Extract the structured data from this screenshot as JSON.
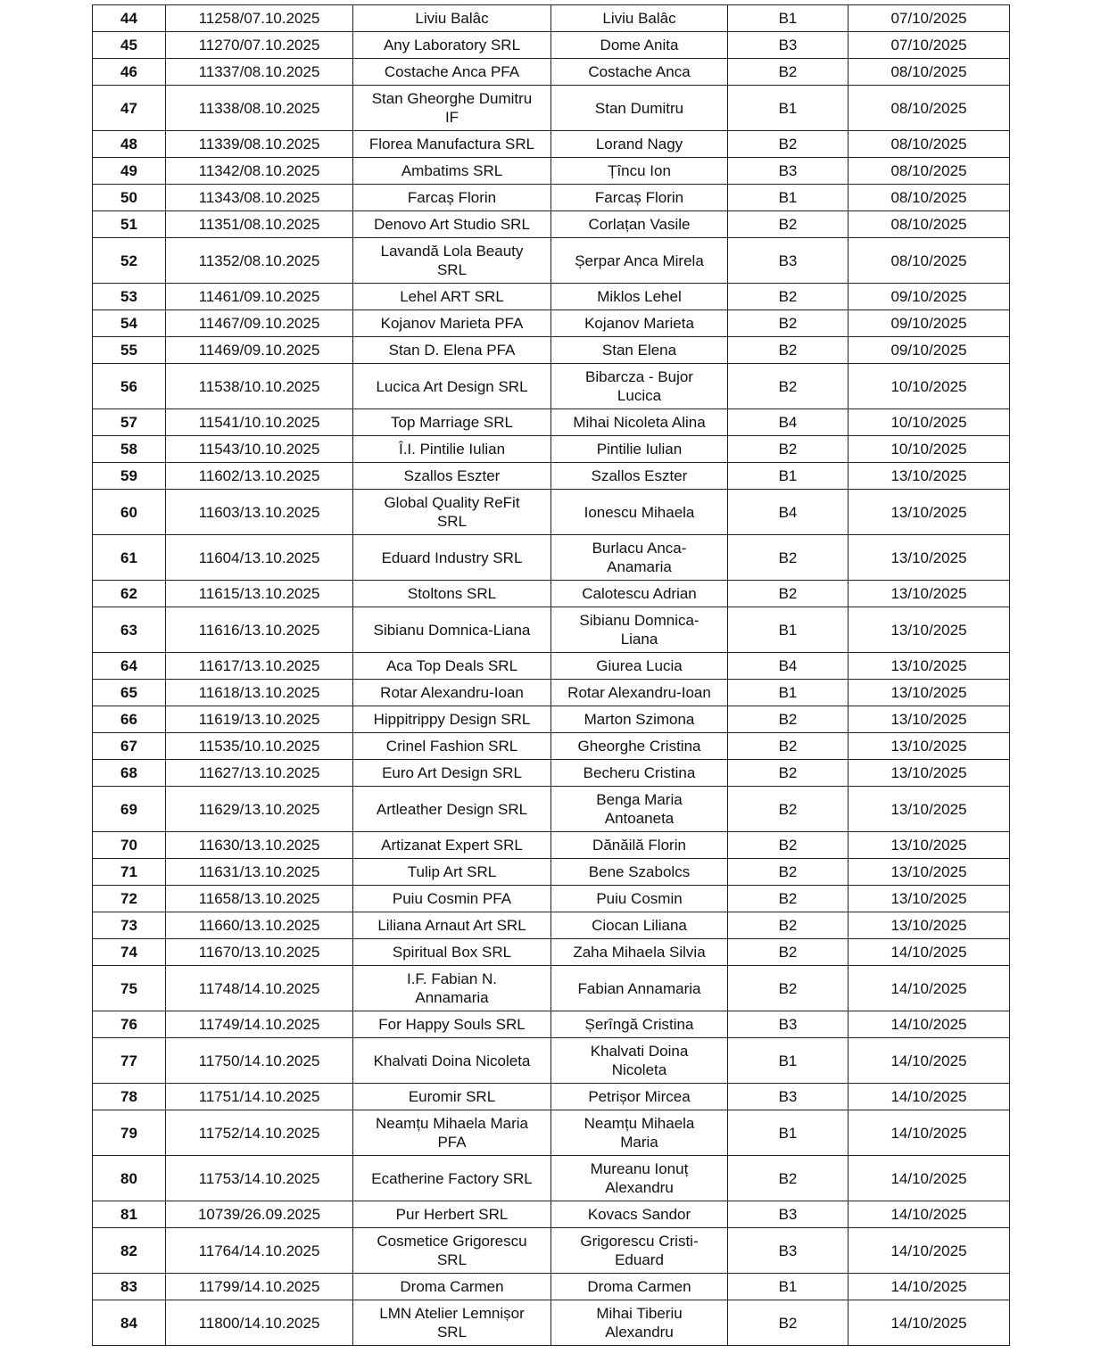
{
  "table": {
    "rows": [
      [
        "44",
        "11258/07.10.2025",
        "Liviu Balâc",
        "Liviu Balâc",
        "B1",
        "07/10/2025"
      ],
      [
        "45",
        "11270/07.10.2025",
        "Any Laboratory SRL",
        "Dome Anita",
        "B3",
        "07/10/2025"
      ],
      [
        "46",
        "11337/08.10.2025",
        "Costache Anca PFA",
        "Costache Anca",
        "B2",
        "08/10/2025"
      ],
      [
        "47",
        "11338/08.10.2025",
        "Stan Gheorghe Dumitru\nIF",
        "Stan Dumitru",
        "B1",
        "08/10/2025"
      ],
      [
        "48",
        "11339/08.10.2025",
        "Florea Manufactura SRL",
        "Lorand Nagy",
        "B2",
        "08/10/2025"
      ],
      [
        "49",
        "11342/08.10.2025",
        "Ambatims SRL",
        "Țîncu Ion",
        "B3",
        "08/10/2025"
      ],
      [
        "50",
        "11343/08.10.2025",
        "Farcaș Florin",
        "Farcaș Florin",
        "B1",
        "08/10/2025"
      ],
      [
        "51",
        "11351/08.10.2025",
        "Denovo Art Studio SRL",
        "Corlațan Vasile",
        "B2",
        "08/10/2025"
      ],
      [
        "52",
        "11352/08.10.2025",
        "Lavandă Lola Beauty\nSRL",
        "Șerpar Anca Mirela",
        "B3",
        "08/10/2025"
      ],
      [
        "53",
        "11461/09.10.2025",
        "Lehel ART SRL",
        "Miklos Lehel",
        "B2",
        "09/10/2025"
      ],
      [
        "54",
        "11467/09.10.2025",
        "Kojanov Marieta PFA",
        "Kojanov Marieta",
        "B2",
        "09/10/2025"
      ],
      [
        "55",
        "11469/09.10.2025",
        "Stan D. Elena PFA",
        "Stan Elena",
        "B2",
        "09/10/2025"
      ],
      [
        "56",
        "11538/10.10.2025",
        "Lucica Art Design SRL",
        "Bibarcza - Bujor\nLucica",
        "B2",
        "10/10/2025"
      ],
      [
        "57",
        "11541/10.10.2025",
        "Top Marriage SRL",
        "Mihai Nicoleta Alina",
        "B4",
        "10/10/2025"
      ],
      [
        "58",
        "11543/10.10.2025",
        "Î.I. Pintilie Iulian",
        "Pintilie Iulian",
        "B2",
        "10/10/2025"
      ],
      [
        "59",
        "11602/13.10.2025",
        "Szallos Eszter",
        "Szallos Eszter",
        "B1",
        "13/10/2025"
      ],
      [
        "60",
        "11603/13.10.2025",
        "Global Quality ReFit\nSRL",
        "Ionescu Mihaela",
        "B4",
        "13/10/2025"
      ],
      [
        "61",
        "11604/13.10.2025",
        "Eduard Industry SRL",
        "Burlacu Anca-\nAnamaria",
        "B2",
        "13/10/2025"
      ],
      [
        "62",
        "11615/13.10.2025",
        "Stoltons SRL",
        "Calotescu Adrian",
        "B2",
        "13/10/2025"
      ],
      [
        "63",
        "11616/13.10.2025",
        "Sibianu Domnica-Liana",
        "Sibianu Domnica-\nLiana",
        "B1",
        "13/10/2025"
      ],
      [
        "64",
        "11617/13.10.2025",
        "Aca Top Deals SRL",
        "Giurea Lucia",
        "B4",
        "13/10/2025"
      ],
      [
        "65",
        "11618/13.10.2025",
        "Rotar Alexandru-Ioan",
        "Rotar Alexandru-Ioan",
        "B1",
        "13/10/2025"
      ],
      [
        "66",
        "11619/13.10.2025",
        "Hippitrippy Design SRL",
        "Marton Szimona",
        "B2",
        "13/10/2025"
      ],
      [
        "67",
        "11535/10.10.2025",
        "Crinel Fashion SRL",
        "Gheorghe Cristina",
        "B2",
        "13/10/2025"
      ],
      [
        "68",
        "11627/13.10.2025",
        "Euro Art Design SRL",
        "Becheru Cristina",
        "B2",
        "13/10/2025"
      ],
      [
        "69",
        "11629/13.10.2025",
        "Artleather Design SRL",
        "Benga Maria\nAntoaneta",
        "B2",
        "13/10/2025"
      ],
      [
        "70",
        "11630/13.10.2025",
        "Artizanat Expert SRL",
        "Dănăilă Florin",
        "B2",
        "13/10/2025"
      ],
      [
        "71",
        "11631/13.10.2025",
        "Tulip Art SRL",
        "Bene Szabolcs",
        "B2",
        "13/10/2025"
      ],
      [
        "72",
        "11658/13.10.2025",
        "Puiu Cosmin PFA",
        "Puiu Cosmin",
        "B2",
        "13/10/2025"
      ],
      [
        "73",
        "11660/13.10.2025",
        "Liliana Arnaut Art SRL",
        "Ciocan Liliana",
        "B2",
        "13/10/2025"
      ],
      [
        "74",
        "11670/13.10.2025",
        "Spiritual Box SRL",
        "Zaha Mihaela Silvia",
        "B2",
        "14/10/2025"
      ],
      [
        "75",
        "11748/14.10.2025",
        "I.F. Fabian N.\nAnnamaria",
        "Fabian Annamaria",
        "B2",
        "14/10/2025"
      ],
      [
        "76",
        "11749/14.10.2025",
        "For Happy Souls SRL",
        "Șerîngă  Cristina",
        "B3",
        "14/10/2025"
      ],
      [
        "77",
        "11750/14.10.2025",
        "Khalvati Doina Nicoleta",
        "Khalvati Doina\nNicoleta",
        "B1",
        "14/10/2025"
      ],
      [
        "78",
        "11751/14.10.2025",
        "Euromir SRL",
        "Petrișor Mircea",
        "B3",
        "14/10/2025"
      ],
      [
        "79",
        "11752/14.10.2025",
        "Neamțu Mihaela Maria\nPFA",
        "Neamțu Mihaela\nMaria",
        "B1",
        "14/10/2025"
      ],
      [
        "80",
        "11753/14.10.2025",
        "Ecatherine Factory SRL",
        "Mureanu Ionuț\nAlexandru",
        "B2",
        "14/10/2025"
      ],
      [
        "81",
        "10739/26.09.2025",
        "Pur Herbert SRL",
        "Kovacs Sandor",
        "B3",
        "14/10/2025"
      ],
      [
        "82",
        "11764/14.10.2025",
        "Cosmetice Grigorescu\nSRL",
        "Grigorescu Cristi-\nEduard",
        "B3",
        "14/10/2025"
      ],
      [
        "83",
        "11799/14.10.2025",
        "Droma Carmen",
        "Droma Carmen",
        "B1",
        "14/10/2025"
      ],
      [
        "84",
        "11800/14.10.2025",
        "LMN Atelier Lemnișor\nSRL",
        "Mihai Tiberiu\nAlexandru",
        "B2",
        "14/10/2025"
      ]
    ]
  }
}
